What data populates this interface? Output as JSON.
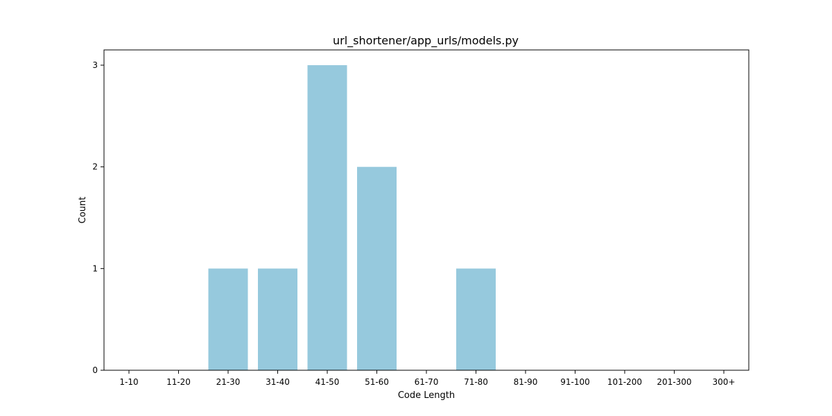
{
  "chart_data": {
    "type": "bar",
    "title": "url_shortener/app_urls/models.py",
    "xlabel": "Code Length",
    "ylabel": "Count",
    "categories": [
      "1-10",
      "11-20",
      "21-30",
      "31-40",
      "41-50",
      "51-60",
      "61-70",
      "71-80",
      "81-90",
      "91-100",
      "101-200",
      "201-300",
      "300+"
    ],
    "values": [
      0,
      0,
      1,
      1,
      3,
      2,
      0,
      1,
      0,
      0,
      0,
      0,
      0
    ],
    "ylim": [
      0,
      3.15
    ],
    "yticks": [
      0,
      1,
      2,
      3
    ],
    "bar_color": "#96c9dd",
    "grid": false
  }
}
